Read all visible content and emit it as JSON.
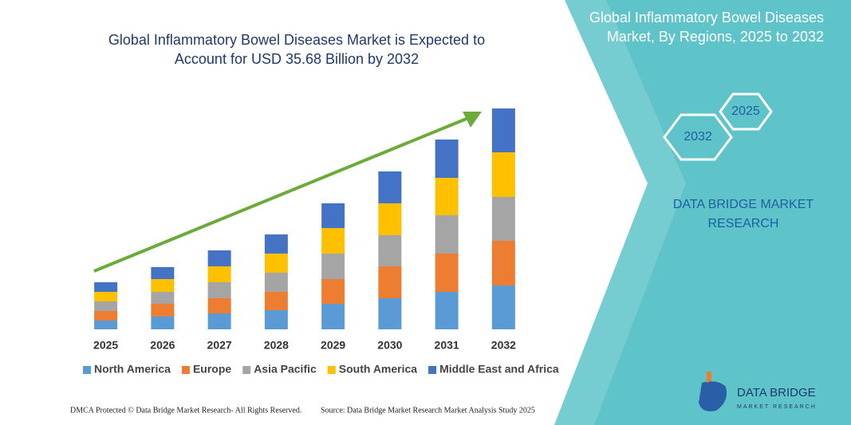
{
  "chart_data": {
    "type": "bar",
    "stacked": true,
    "title": "Global Inflammatory Bowel Diseases Market is Expected to Account for USD 35.68 Billion by 2032",
    "categories": [
      "2025",
      "2026",
      "2027",
      "2028",
      "2029",
      "2030",
      "2031",
      "2032"
    ],
    "series": [
      {
        "name": "North America",
        "color": "#5b9bd5",
        "values": [
          11,
          16,
          20,
          24,
          32,
          39,
          47,
          55
        ]
      },
      {
        "name": "Europe",
        "color": "#ed7d31",
        "values": [
          12,
          16,
          19,
          23,
          31,
          40,
          48,
          56
        ]
      },
      {
        "name": "Asia Pacific",
        "color": "#a5a5a5",
        "values": [
          12,
          15,
          20,
          24,
          32,
          39,
          48,
          55
        ]
      },
      {
        "name": "South America",
        "color": "#ffc000",
        "values": [
          12,
          16,
          20,
          24,
          32,
          40,
          47,
          56
        ]
      },
      {
        "name": "Middle East and Africa",
        "color": "#4472c4",
        "values": [
          12,
          15,
          20,
          24,
          31,
          40,
          48,
          55
        ]
      }
    ],
    "ylim": [
      0,
      300
    ],
    "grid": false,
    "legend": "bottom"
  },
  "panel": {
    "title": "Global Inflammatory Bowel Diseases Market, By Regions, 2025 to 2032",
    "hexagons": [
      "2025",
      "2032"
    ],
    "brand": "DATA BRIDGE MARKET RESEARCH"
  },
  "logo": {
    "name": "DATA BRIDGE",
    "tagline": "MARKET RESEARCH"
  },
  "footer": {
    "left": "DMCA Protected © Data Bridge Market Research- All Rights Reserved.",
    "right": "Source: Data Bridge Market Research Market Analysis Study 2025"
  }
}
